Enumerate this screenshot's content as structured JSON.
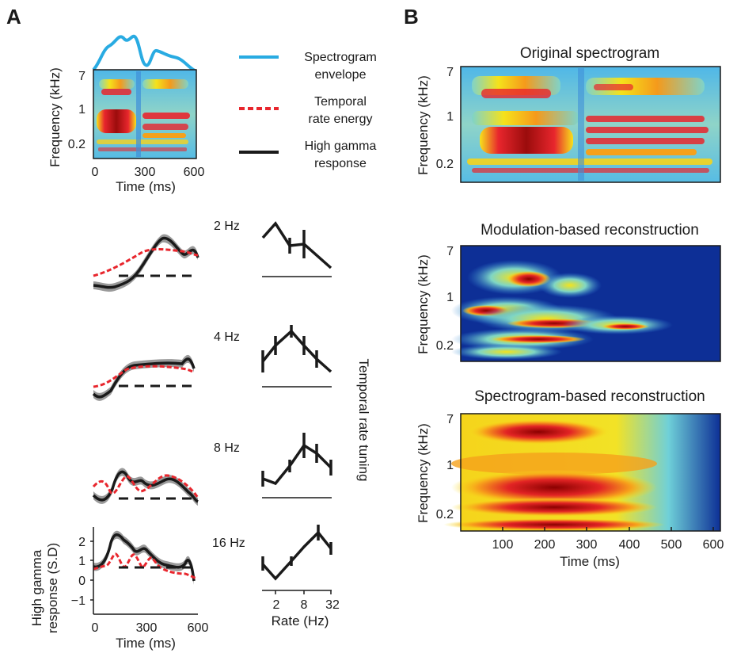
{
  "panel_a": {
    "letter": "A",
    "spectrogram": {
      "ylabel": "Frequency (kHz)",
      "yticks": [
        "7",
        "1",
        "0.2"
      ],
      "xlabel": "Time (ms)",
      "xticks": [
        "0",
        "300",
        "600"
      ]
    },
    "legend": [
      {
        "label_line1": "Spectrogram",
        "label_line2": "envelope",
        "color": "#29abe2",
        "style": "solid"
      },
      {
        "label_line1": "Temporal",
        "label_line2": "rate energy",
        "color": "#e8262d",
        "style": "dashed"
      },
      {
        "label_line1": "High gamma",
        "label_line2": "response",
        "color": "#1a1a1a",
        "style": "solid"
      }
    ],
    "rate_rows": [
      {
        "label": "2 Hz"
      },
      {
        "label": "4 Hz"
      },
      {
        "label": "8 Hz"
      },
      {
        "label": "16 Hz"
      }
    ],
    "response_axis": {
      "ylabel_line1": "High gamma",
      "ylabel_line2": "response (S.D)",
      "yticks": [
        "2",
        "1",
        "0",
        "−1"
      ],
      "xlabel": "Time (ms)",
      "xticks": [
        "0",
        "300",
        "600"
      ]
    },
    "tuning_axis": {
      "side_label": "Temporal rate tuning",
      "xticks": [
        "2",
        "8",
        "32"
      ],
      "xlabel": "Rate (Hz)"
    }
  },
  "panel_b": {
    "letter": "B",
    "subplots": [
      {
        "title": "Original spectrogram",
        "ylabel": "Frequency (kHz)",
        "yticks": [
          "7",
          "1",
          "0.2"
        ]
      },
      {
        "title": "Modulation-based reconstruction",
        "ylabel": "Frequency (kHz)",
        "yticks": [
          "7",
          "1",
          "0.2"
        ]
      },
      {
        "title": "Spectrogram-based reconstruction",
        "ylabel": "Frequency (kHz)",
        "yticks": [
          "7",
          "1",
          "0.2"
        ]
      }
    ],
    "xlabel": "Time (ms)",
    "xticks": [
      "100",
      "200",
      "300",
      "400",
      "500",
      "600"
    ]
  },
  "colors": {
    "envelope": "#29abe2",
    "rate_energy": "#e8262d",
    "response": "#1a1a1a",
    "shading": "#9a9a9a",
    "heat_low": "#0a2a8f",
    "heat_high": "#8b0000"
  }
}
